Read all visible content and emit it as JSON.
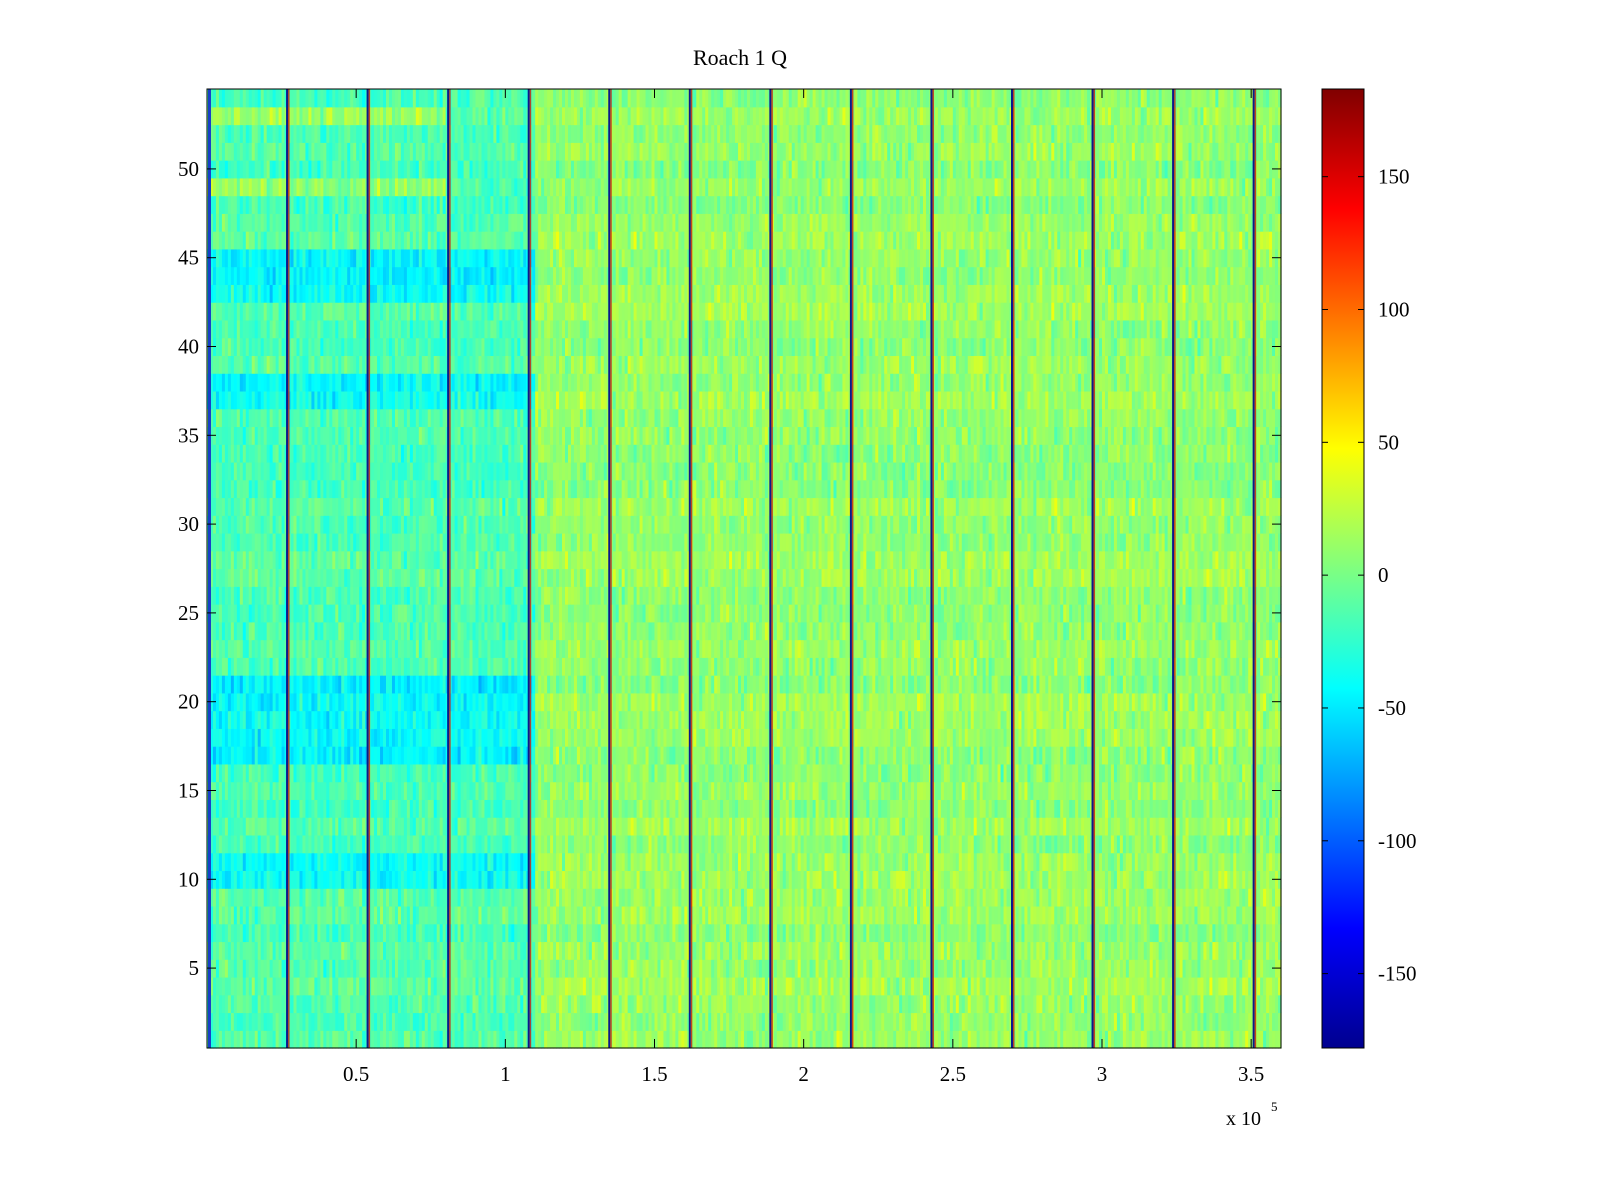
{
  "chart_data": {
    "type": "heatmap",
    "title": "Roach 1 Q",
    "xlabel": "",
    "ylabel": "",
    "x_exponent_label": {
      "base": "x 10",
      "exponent": "5"
    },
    "x_range": [
      0,
      3.6
    ],
    "x_units_multiplier": 100000,
    "y_range": [
      0.5,
      54.5
    ],
    "rows": 54,
    "x_ticks": [
      0.5,
      1,
      1.5,
      2,
      2.5,
      3,
      3.5
    ],
    "x_tick_labels": [
      "0.5",
      "1",
      "1.5",
      "2",
      "2.5",
      "3",
      "3.5"
    ],
    "y_ticks": [
      5,
      10,
      15,
      20,
      25,
      30,
      35,
      40,
      45,
      50
    ],
    "y_tick_labels": [
      "5",
      "10",
      "15",
      "20",
      "25",
      "30",
      "35",
      "40",
      "45",
      "50"
    ],
    "colorbar": {
      "colormap": "jet",
      "range": [
        -178,
        183
      ],
      "ticks": [
        -150,
        -100,
        -50,
        0,
        50,
        100,
        150
      ],
      "tick_labels": [
        "-150",
        "-100",
        "-50",
        "0",
        "50",
        "100",
        "150"
      ]
    },
    "boundary_lines_x": [
      0.27,
      0.54,
      0.81,
      1.08,
      1.35,
      1.62,
      1.89,
      2.16,
      2.43,
      2.7,
      2.97,
      3.24,
      3.51
    ],
    "left_region_mean": -15,
    "right_region_mean": 10,
    "cool_bands_rows": [
      10,
      11,
      17,
      18,
      19,
      20,
      21,
      37,
      38,
      43,
      44,
      45
    ]
  },
  "colors": {
    "background": "#ffffff",
    "axis": "#000000"
  }
}
